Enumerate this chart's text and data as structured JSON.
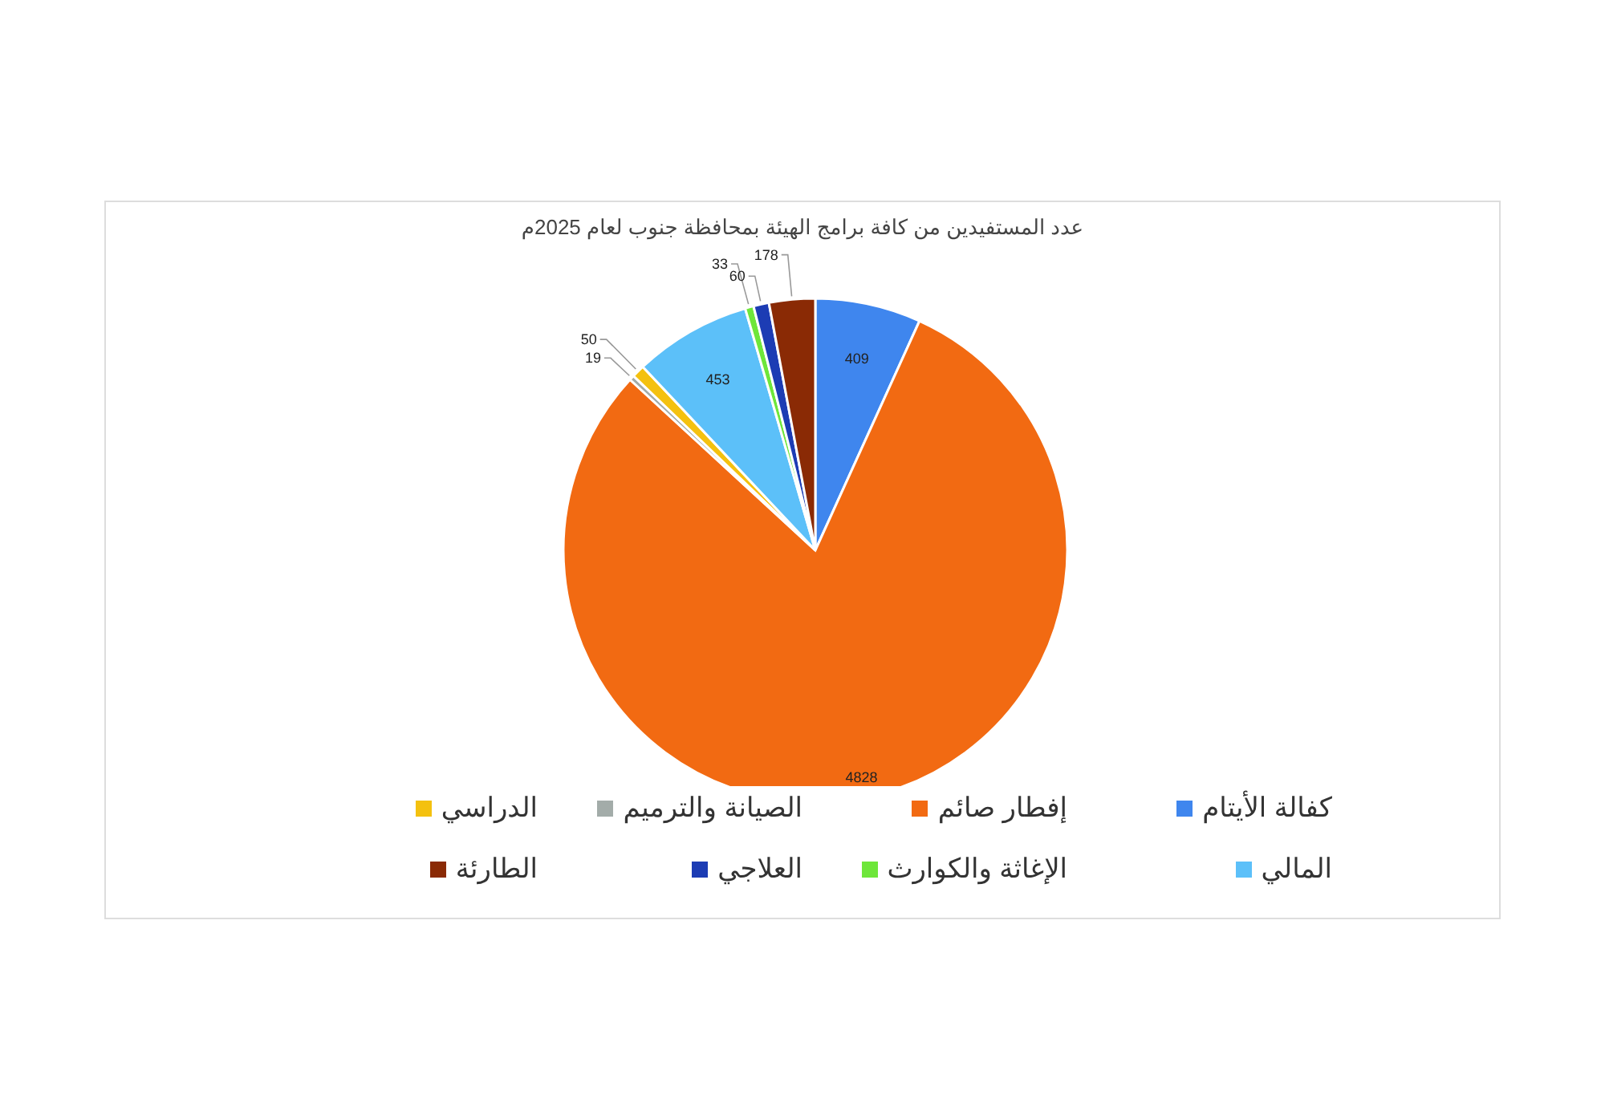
{
  "chart_data": {
    "type": "pie",
    "title": "عدد المستفيدين من كافة برامج الهيئة بمحافظة جنوب لعام 2025م",
    "categories": [
      "كفالة الأيتام",
      "إفطار صائم",
      "الصيانة والترميم",
      "الدراسي",
      "المالي",
      "الإغاثة والكوارث",
      "العلاجي",
      "الطارئة"
    ],
    "values": [
      409,
      4828,
      19,
      50,
      453,
      33,
      60,
      178
    ],
    "colors": [
      "#3f86ee",
      "#f26a12",
      "#a3aca9",
      "#f4c10f",
      "#5cc0f9",
      "#6ee63a",
      "#1c3cb4",
      "#8a2a05"
    ],
    "data_labels": true,
    "legend": "bottom"
  }
}
